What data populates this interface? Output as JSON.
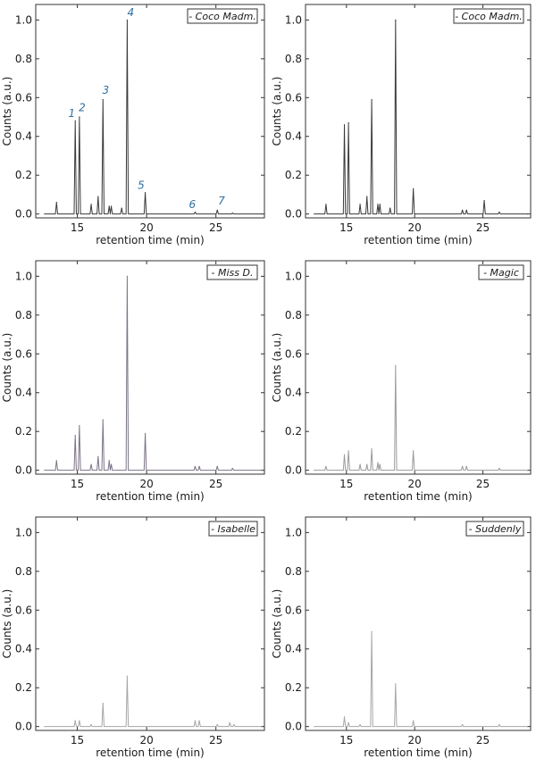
{
  "chart_data": [
    {
      "type": "line",
      "legend": "- Coco Madm.",
      "line_color": "#3a3a3a",
      "xlabel": "retention time (min)",
      "ylabel": "Counts (a.u.)",
      "xlim": [
        12,
        28.5
      ],
      "ylim": [
        -0.02,
        1.08
      ],
      "xticks": [
        15,
        20,
        25
      ],
      "yticks": [
        0.0,
        0.2,
        0.4,
        0.6,
        0.8,
        1.0
      ],
      "grid": false,
      "legend_position": "top-right",
      "peaks": [
        {
          "x": 13.5,
          "y": 0.06
        },
        {
          "x": 14.85,
          "y": 0.48
        },
        {
          "x": 15.15,
          "y": 0.5
        },
        {
          "x": 16.0,
          "y": 0.05
        },
        {
          "x": 16.5,
          "y": 0.09
        },
        {
          "x": 16.85,
          "y": 0.59
        },
        {
          "x": 17.3,
          "y": 0.04
        },
        {
          "x": 17.45,
          "y": 0.04
        },
        {
          "x": 18.2,
          "y": 0.03
        },
        {
          "x": 18.6,
          "y": 1.0
        },
        {
          "x": 19.9,
          "y": 0.11
        },
        {
          "x": 23.5,
          "y": 0.01
        },
        {
          "x": 25.1,
          "y": 0.02
        },
        {
          "x": 26.2,
          "y": 0.005
        }
      ],
      "annotations": [
        {
          "text": "1",
          "x": 14.6,
          "y": 0.5
        },
        {
          "text": "2",
          "x": 15.35,
          "y": 0.53
        },
        {
          "text": "3",
          "x": 17.05,
          "y": 0.62
        },
        {
          "text": "4",
          "x": 18.85,
          "y": 1.02
        },
        {
          "text": "5",
          "x": 19.6,
          "y": 0.13
        },
        {
          "text": "6",
          "x": 23.3,
          "y": 0.03
        },
        {
          "text": "7",
          "x": 25.4,
          "y": 0.05
        }
      ]
    },
    {
      "type": "line",
      "legend": "- Coco Madm.",
      "line_color": "#3a3a3a",
      "xlabel": "retention time (min)",
      "ylabel": "Counts (a.u.)",
      "xlim": [
        12,
        28.5
      ],
      "ylim": [
        -0.02,
        1.08
      ],
      "xticks": [
        15,
        20,
        25
      ],
      "yticks": [
        0.0,
        0.2,
        0.4,
        0.6,
        0.8,
        1.0
      ],
      "grid": false,
      "legend_position": "top-right",
      "peaks": [
        {
          "x": 13.5,
          "y": 0.05
        },
        {
          "x": 14.85,
          "y": 0.46
        },
        {
          "x": 15.15,
          "y": 0.47
        },
        {
          "x": 16.0,
          "y": 0.05
        },
        {
          "x": 16.5,
          "y": 0.09
        },
        {
          "x": 16.85,
          "y": 0.59
        },
        {
          "x": 17.3,
          "y": 0.05
        },
        {
          "x": 17.45,
          "y": 0.05
        },
        {
          "x": 18.2,
          "y": 0.03
        },
        {
          "x": 18.6,
          "y": 1.0
        },
        {
          "x": 19.9,
          "y": 0.13
        },
        {
          "x": 23.5,
          "y": 0.02
        },
        {
          "x": 23.8,
          "y": 0.02
        },
        {
          "x": 25.1,
          "y": 0.07
        },
        {
          "x": 26.2,
          "y": 0.01
        }
      ]
    },
    {
      "type": "line",
      "legend": "- Miss D.",
      "line_color": "#7d7487",
      "xlabel": "retention time (min)",
      "ylabel": "Counts (a.u.)",
      "xlim": [
        12,
        28.5
      ],
      "ylim": [
        -0.02,
        1.08
      ],
      "xticks": [
        15,
        20,
        25
      ],
      "yticks": [
        0.0,
        0.2,
        0.4,
        0.6,
        0.8,
        1.0
      ],
      "grid": false,
      "legend_position": "top-right",
      "peaks": [
        {
          "x": 13.5,
          "y": 0.05
        },
        {
          "x": 14.85,
          "y": 0.18
        },
        {
          "x": 15.15,
          "y": 0.23
        },
        {
          "x": 16.0,
          "y": 0.03
        },
        {
          "x": 16.5,
          "y": 0.07
        },
        {
          "x": 16.85,
          "y": 0.26
        },
        {
          "x": 17.3,
          "y": 0.05
        },
        {
          "x": 17.45,
          "y": 0.03
        },
        {
          "x": 18.6,
          "y": 1.0
        },
        {
          "x": 19.9,
          "y": 0.19
        },
        {
          "x": 23.5,
          "y": 0.02
        },
        {
          "x": 23.8,
          "y": 0.02
        },
        {
          "x": 25.1,
          "y": 0.02
        },
        {
          "x": 26.2,
          "y": 0.01
        }
      ]
    },
    {
      "type": "line",
      "legend": "- Magic",
      "line_color": "#9a9a9a",
      "xlabel": "retention time (min)",
      "ylabel": "Counts (a.u.)",
      "xlim": [
        12,
        28.5
      ],
      "ylim": [
        -0.02,
        1.08
      ],
      "xticks": [
        15,
        20,
        25
      ],
      "yticks": [
        0.0,
        0.2,
        0.4,
        0.6,
        0.8,
        1.0
      ],
      "grid": false,
      "legend_position": "top-right",
      "peaks": [
        {
          "x": 13.5,
          "y": 0.02
        },
        {
          "x": 14.85,
          "y": 0.08
        },
        {
          "x": 15.15,
          "y": 0.1
        },
        {
          "x": 16.0,
          "y": 0.03
        },
        {
          "x": 16.5,
          "y": 0.03
        },
        {
          "x": 16.85,
          "y": 0.11
        },
        {
          "x": 17.3,
          "y": 0.04
        },
        {
          "x": 17.45,
          "y": 0.03
        },
        {
          "x": 18.6,
          "y": 0.54
        },
        {
          "x": 19.9,
          "y": 0.1
        },
        {
          "x": 23.5,
          "y": 0.02
        },
        {
          "x": 23.8,
          "y": 0.02
        },
        {
          "x": 26.2,
          "y": 0.01
        }
      ]
    },
    {
      "type": "line",
      "legend": "- Isabelle",
      "line_color": "#a6a6a6",
      "xlabel": "retention time (min)",
      "ylabel": "Counts (a.u.)",
      "xlim": [
        12,
        28.5
      ],
      "ylim": [
        -0.02,
        1.08
      ],
      "xticks": [
        15,
        20,
        25
      ],
      "yticks": [
        0.0,
        0.2,
        0.4,
        0.6,
        0.8,
        1.0
      ],
      "grid": false,
      "legend_position": "top-right",
      "peaks": [
        {
          "x": 14.85,
          "y": 0.03
        },
        {
          "x": 15.15,
          "y": 0.03
        },
        {
          "x": 16.0,
          "y": 0.01
        },
        {
          "x": 16.85,
          "y": 0.12
        },
        {
          "x": 18.6,
          "y": 0.26
        },
        {
          "x": 23.5,
          "y": 0.03
        },
        {
          "x": 23.8,
          "y": 0.03
        },
        {
          "x": 25.1,
          "y": 0.01
        },
        {
          "x": 26.0,
          "y": 0.02
        },
        {
          "x": 26.3,
          "y": 0.01
        }
      ]
    },
    {
      "type": "line",
      "legend": "- Suddenly",
      "line_color": "#a6a6a6",
      "xlabel": "retention time (min)",
      "ylabel": "Counts (a.u.)",
      "xlim": [
        12,
        28.5
      ],
      "ylim": [
        -0.02,
        1.08
      ],
      "xticks": [
        15,
        20,
        25
      ],
      "yticks": [
        0.0,
        0.2,
        0.4,
        0.6,
        0.8,
        1.0
      ],
      "grid": false,
      "legend_position": "top-right",
      "peaks": [
        {
          "x": 14.85,
          "y": 0.05
        },
        {
          "x": 15.15,
          "y": 0.02
        },
        {
          "x": 16.0,
          "y": 0.01
        },
        {
          "x": 16.85,
          "y": 0.49
        },
        {
          "x": 18.6,
          "y": 0.22
        },
        {
          "x": 19.9,
          "y": 0.03
        },
        {
          "x": 23.5,
          "y": 0.01
        },
        {
          "x": 26.2,
          "y": 0.01
        }
      ]
    }
  ]
}
